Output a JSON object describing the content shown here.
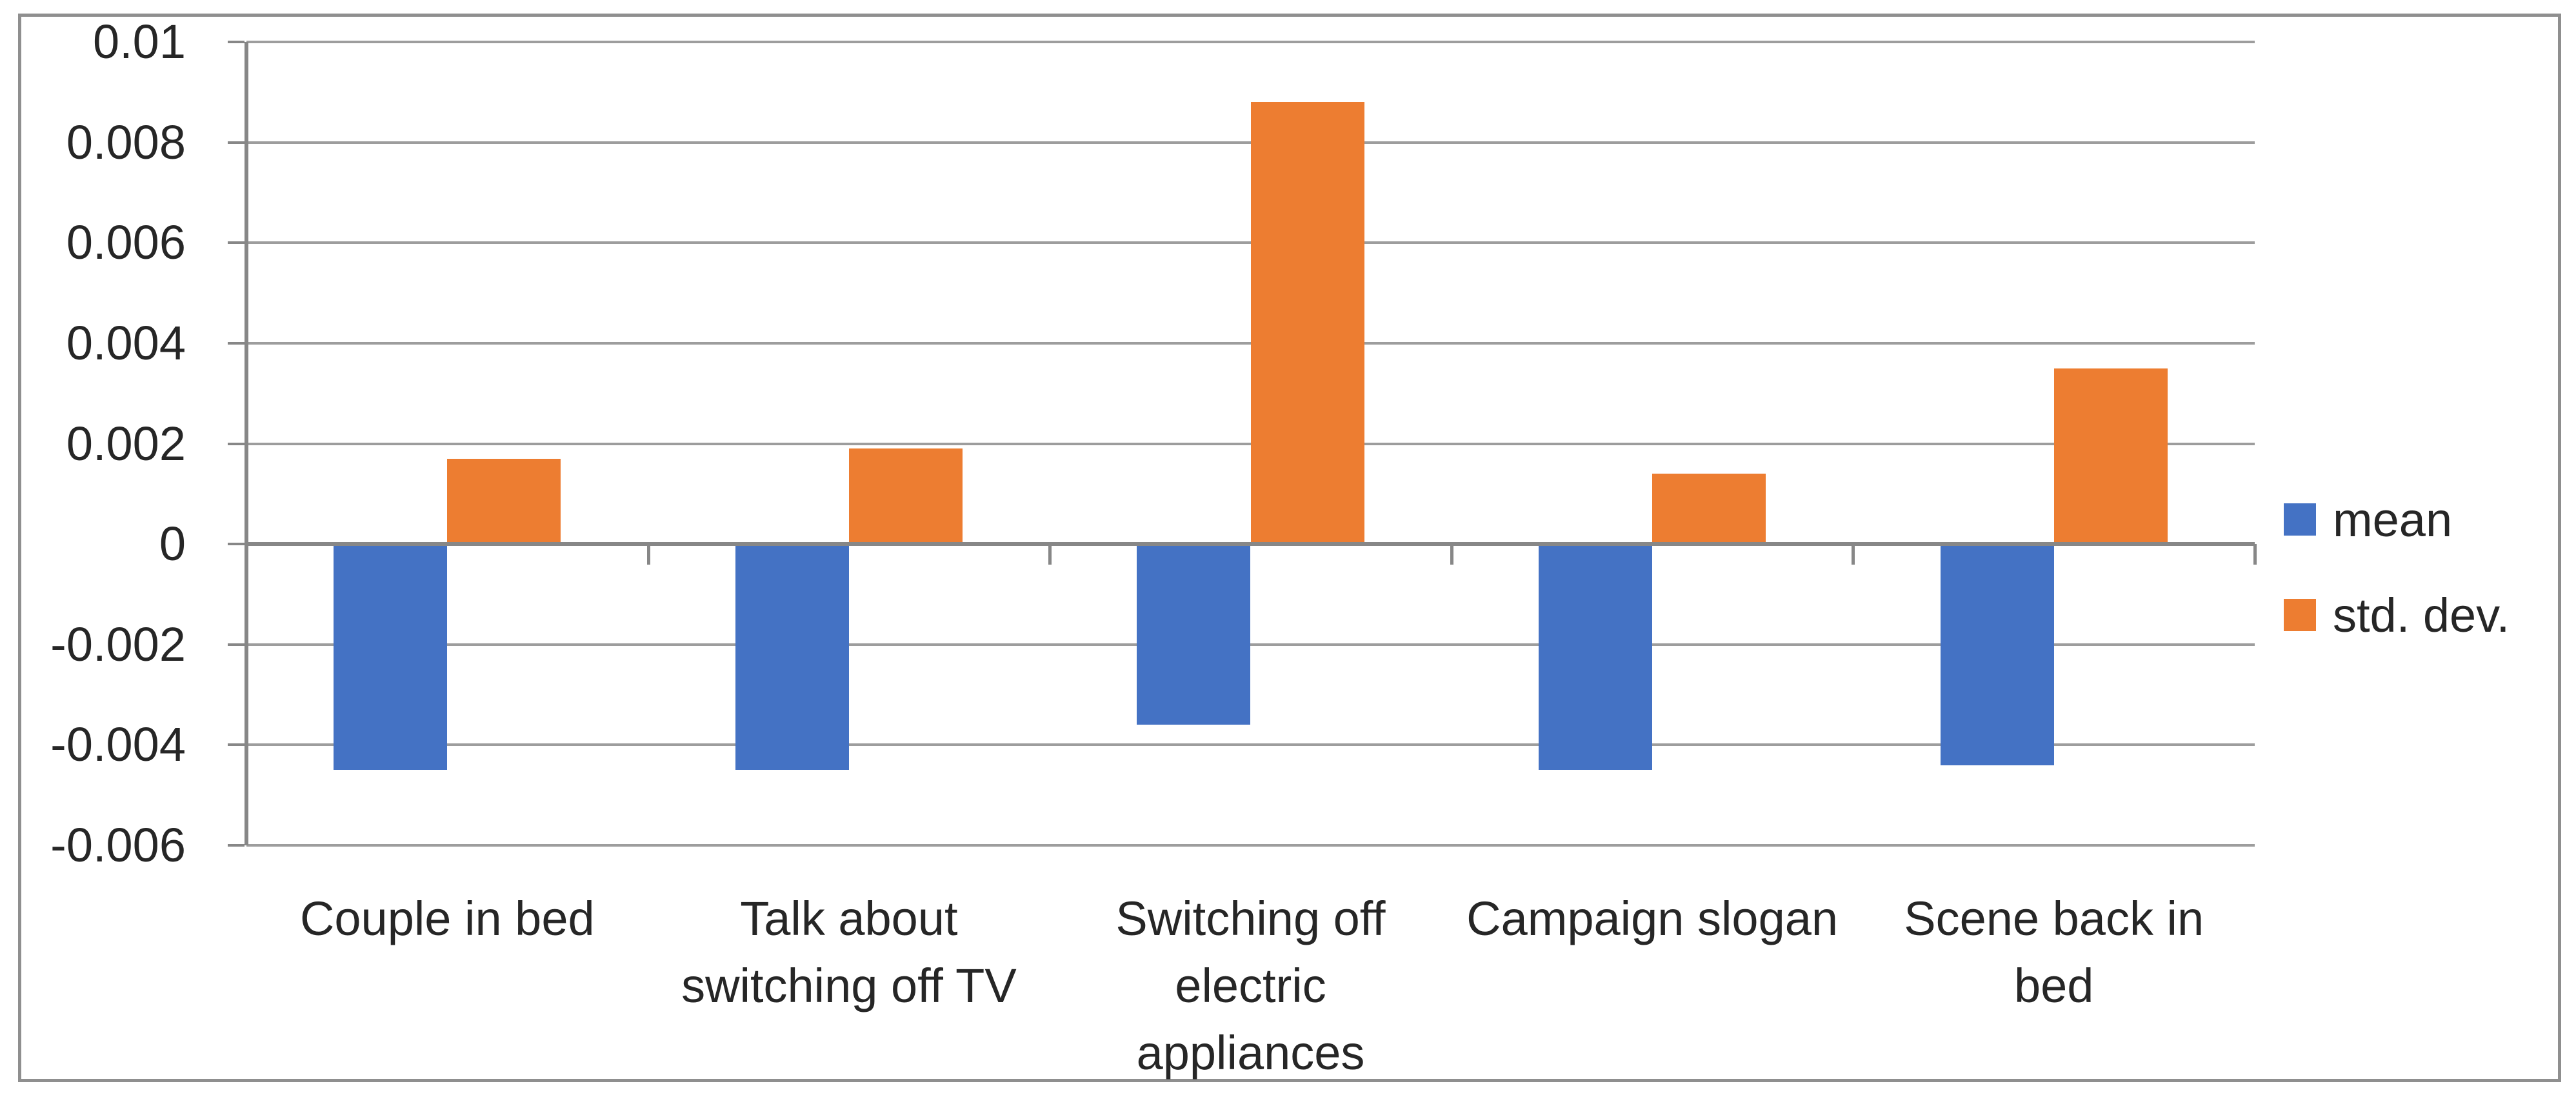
{
  "chart_data": {
    "type": "bar",
    "title": "",
    "xlabel": "",
    "ylabel": "",
    "categories": [
      "Couple in bed",
      "Talk about switching off TV",
      "Switching off electric appliances",
      "Campaign slogan",
      "Scene back in bed"
    ],
    "category_label_lines": [
      [
        "Couple in bed"
      ],
      [
        "Talk about",
        "switching off TV"
      ],
      [
        "Switching off",
        "electric",
        "appliances"
      ],
      [
        "Campaign slogan"
      ],
      [
        "Scene back in bed"
      ]
    ],
    "series": [
      {
        "name": "mean",
        "color": "#4472C4",
        "values": [
          -0.0045,
          -0.0045,
          -0.0036,
          -0.0045,
          -0.0044
        ]
      },
      {
        "name": "std. dev.",
        "color": "#ED7D31",
        "values": [
          0.0017,
          0.0019,
          0.0088,
          0.0014,
          0.0035
        ]
      }
    ],
    "ylim": [
      -0.006,
      0.01
    ],
    "ytick_step": 0.002,
    "ytick_labels": [
      "0.01",
      "0.008",
      "0.006",
      "0.004",
      "0.002",
      "0",
      "-0.002",
      "-0.004",
      "-0.006"
    ],
    "grid": true,
    "legend_position": "right"
  },
  "colors": {
    "gridline": "#9d9d9d",
    "axis_line": "#878787",
    "text": "#262626",
    "frame_border": "#8f8f8f",
    "background": "#ffffff"
  }
}
